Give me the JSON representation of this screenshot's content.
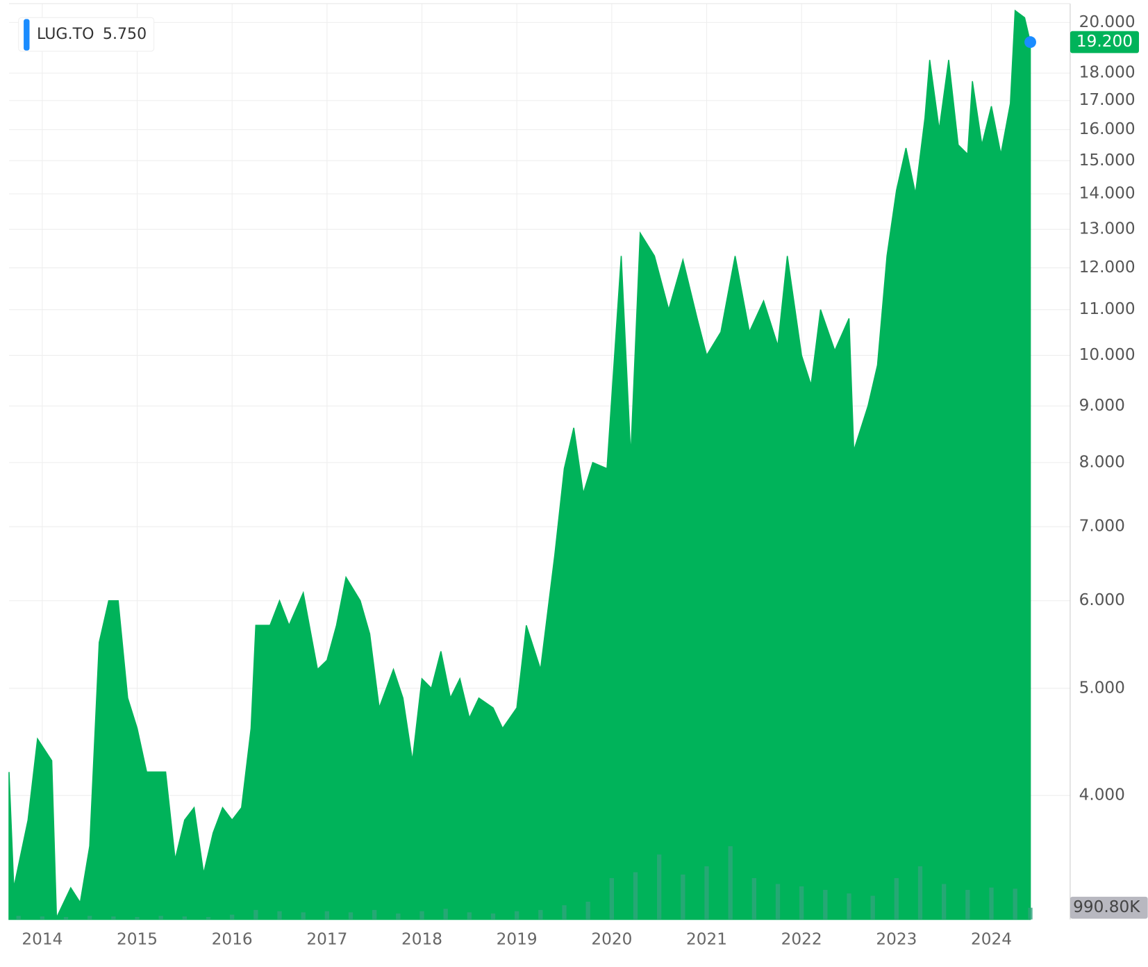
{
  "chart_data": {
    "type": "area",
    "log_scale": true,
    "grid": true,
    "legend": {
      "name": "LUG.TO",
      "value": "5.750",
      "corner": "top-left"
    },
    "xlim": [
      2013.65,
      2024.83
    ],
    "xticks": [
      2014,
      2015,
      2016,
      2017,
      2018,
      2019,
      2020,
      2021,
      2022,
      2023,
      2024
    ],
    "ylim": [
      3.09,
      20.8
    ],
    "yticks": [
      {
        "value": 4,
        "label": "4.000"
      },
      {
        "value": 5,
        "label": "5.000"
      },
      {
        "value": 6,
        "label": "6.000"
      },
      {
        "value": 7,
        "label": "7.000"
      },
      {
        "value": 8,
        "label": "8.000"
      },
      {
        "value": 9,
        "label": "9.000"
      },
      {
        "value": 10,
        "label": "10.000"
      },
      {
        "value": 11,
        "label": "11.000"
      },
      {
        "value": 12,
        "label": "12.000"
      },
      {
        "value": 13,
        "label": "13.000"
      },
      {
        "value": 14,
        "label": "14.000"
      },
      {
        "value": 15,
        "label": "15.000"
      },
      {
        "value": 16,
        "label": "16.000"
      },
      {
        "value": 17,
        "label": "17.000"
      },
      {
        "value": 18,
        "label": "18.000"
      },
      {
        "value": 20,
        "label": "20.000"
      }
    ],
    "series": [
      {
        "name": "LUG.TO",
        "color": "#00b35a",
        "last_label": "19.200",
        "last_color": "#00b35a",
        "marker_color": "#1a8cff",
        "x": [
          2013.65,
          2013.7,
          2013.85,
          2013.95,
          2014.1,
          2014.15,
          2014.3,
          2014.4,
          2014.5,
          2014.6,
          2014.7,
          2014.8,
          2014.9,
          2015.0,
          2015.1,
          2015.2,
          2015.3,
          2015.4,
          2015.5,
          2015.6,
          2015.7,
          2015.8,
          2015.9,
          2016.0,
          2016.1,
          2016.2,
          2016.25,
          2016.4,
          2016.5,
          2016.6,
          2016.75,
          2016.9,
          2017.0,
          2017.1,
          2017.2,
          2017.35,
          2017.45,
          2017.55,
          2017.7,
          2017.8,
          2017.9,
          2018.0,
          2018.1,
          2018.2,
          2018.3,
          2018.4,
          2018.5,
          2018.6,
          2018.75,
          2018.85,
          2019.0,
          2019.1,
          2019.25,
          2019.4,
          2019.5,
          2019.6,
          2019.7,
          2019.8,
          2019.95,
          2020.1,
          2020.2,
          2020.3,
          2020.45,
          2020.6,
          2020.75,
          2020.9,
          2021.0,
          2021.15,
          2021.3,
          2021.45,
          2021.6,
          2021.75,
          2021.85,
          2022.0,
          2022.1,
          2022.2,
          2022.35,
          2022.5,
          2022.55,
          2022.7,
          2022.8,
          2022.9,
          2023.0,
          2023.1,
          2023.2,
          2023.3,
          2023.35,
          2023.45,
          2023.55,
          2023.65,
          2023.75,
          2023.8,
          2023.9,
          2024.0,
          2024.1,
          2024.2,
          2024.25,
          2024.35,
          2024.41
        ],
        "values": [
          4.2,
          3.3,
          3.8,
          4.5,
          4.3,
          3.1,
          3.3,
          3.2,
          3.6,
          5.5,
          6.0,
          6.0,
          4.9,
          4.6,
          4.2,
          4.2,
          4.2,
          3.5,
          3.8,
          3.9,
          3.4,
          3.7,
          3.9,
          3.8,
          3.9,
          4.6,
          5.7,
          5.7,
          6.0,
          5.7,
          6.1,
          5.2,
          5.3,
          5.7,
          6.3,
          6.0,
          5.6,
          4.8,
          5.2,
          4.9,
          4.3,
          5.1,
          5.0,
          5.4,
          4.9,
          5.1,
          4.7,
          4.9,
          4.8,
          4.6,
          4.8,
          5.7,
          5.2,
          6.6,
          7.9,
          8.6,
          7.5,
          8.0,
          7.9,
          12.3,
          8.1,
          12.9,
          12.3,
          11.0,
          12.2,
          10.8,
          10.0,
          10.5,
          12.3,
          10.5,
          11.2,
          10.2,
          12.3,
          10.0,
          9.4,
          11.0,
          10.1,
          10.8,
          8.2,
          9.0,
          9.8,
          12.3,
          14.1,
          15.4,
          14.0,
          16.4,
          18.5,
          16.0,
          18.5,
          15.5,
          15.2,
          17.7,
          15.5,
          16.8,
          15.2,
          16.9,
          20.5,
          20.2,
          19.2
        ]
      }
    ],
    "volume": {
      "color": "#2fa57c",
      "last_label": "990.80K",
      "last_color": "#b8b8c0",
      "vlim": [
        0,
        9300000
      ],
      "x": [
        2013.75,
        2014.0,
        2014.25,
        2014.5,
        2014.75,
        2015.0,
        2015.25,
        2015.5,
        2015.75,
        2016.0,
        2016.25,
        2016.5,
        2016.75,
        2017.0,
        2017.25,
        2017.5,
        2017.75,
        2018.0,
        2018.25,
        2018.5,
        2018.75,
        2019.0,
        2019.25,
        2019.5,
        2019.75,
        2020.0,
        2020.25,
        2020.5,
        2020.75,
        2021.0,
        2021.25,
        2021.5,
        2021.75,
        2022.0,
        2022.25,
        2022.5,
        2022.75,
        2023.0,
        2023.25,
        2023.5,
        2023.75,
        2024.0,
        2024.25,
        2024.41
      ],
      "values": [
        300000,
        250000,
        200000,
        300000,
        250000,
        200000,
        300000,
        250000,
        200000,
        400000,
        800000,
        700000,
        600000,
        700000,
        600000,
        800000,
        500000,
        700000,
        900000,
        600000,
        500000,
        700000,
        800000,
        1200000,
        1500000,
        3500000,
        4000000,
        5500000,
        3800000,
        4500000,
        6200000,
        3500000,
        3000000,
        2800000,
        2500000,
        2200000,
        2000000,
        3500000,
        4500000,
        3000000,
        2500000,
        2700000,
        2600000,
        990800
      ]
    }
  }
}
